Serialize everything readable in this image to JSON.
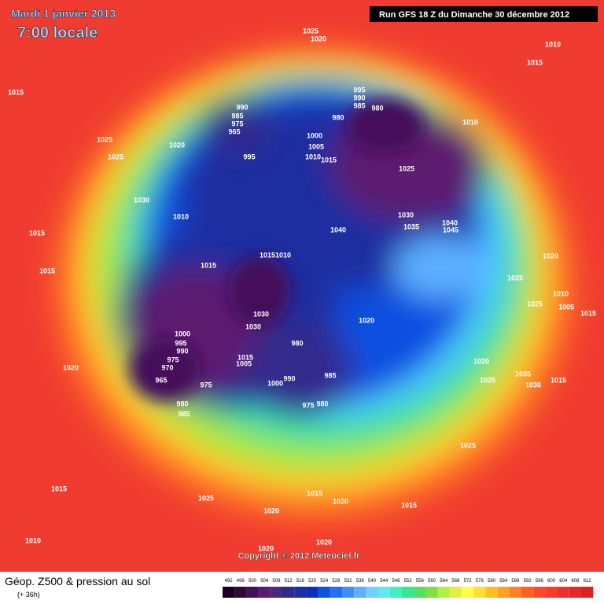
{
  "header": {
    "date": "Mardi 1 janvier 2013",
    "time": "7:00 locale",
    "run": "Run GFS 18 Z du Dimanche 30 décembre 2012"
  },
  "copyright": "Copyright © 2012 Meteociel.fr",
  "footer": {
    "title": "Géop. Z500 & pression au sol",
    "lead": "(+ 36h)"
  },
  "scale": {
    "levels": [
      492,
      496,
      500,
      504,
      508,
      512,
      516,
      520,
      524,
      528,
      532,
      536,
      540,
      544,
      548,
      552,
      556,
      560,
      564,
      568,
      572,
      576,
      580,
      584,
      588,
      592,
      596,
      600,
      604,
      608,
      612
    ],
    "colors": [
      "#1a0020",
      "#2e0838",
      "#45105a",
      "#5c1a70",
      "#4a2a80",
      "#302a8c",
      "#1e2ea0",
      "#0a30c0",
      "#1050e0",
      "#2070f0",
      "#3c90f8",
      "#5cb0ff",
      "#70d0ff",
      "#60e8f0",
      "#40f0c0",
      "#30e890",
      "#50e060",
      "#80e040",
      "#b0f040",
      "#e0f040",
      "#ffff40",
      "#ffe030",
      "#ffc020",
      "#ffa020",
      "#ff8020",
      "#ff6020",
      "#ff4828",
      "#f83c2c",
      "#f03030",
      "#e82828",
      "#e02020"
    ]
  },
  "isobar_labels": [
    1025,
    1020,
    1015,
    1010,
    1015,
    990,
    985,
    975,
    965,
    995,
    990,
    985,
    980,
    980,
    1010,
    1025,
    1020,
    1025,
    995,
    1000,
    1005,
    1010,
    1015,
    1025,
    1030,
    1010,
    1030,
    1035,
    1040,
    1045,
    1040,
    1015,
    1015,
    1015,
    1015,
    1010,
    1020,
    1025,
    1030,
    1025,
    1010,
    1005,
    1015,
    1020,
    1030,
    1000,
    995,
    990,
    1015,
    1005,
    980,
    975,
    970,
    965,
    990,
    1000,
    985,
    975,
    980,
    985,
    975,
    980,
    1020,
    1020,
    1025,
    1035,
    1030,
    1015,
    1025,
    1015,
    1015,
    1020,
    1015,
    1025,
    1020,
    1010,
    1020,
    1020
  ]
}
